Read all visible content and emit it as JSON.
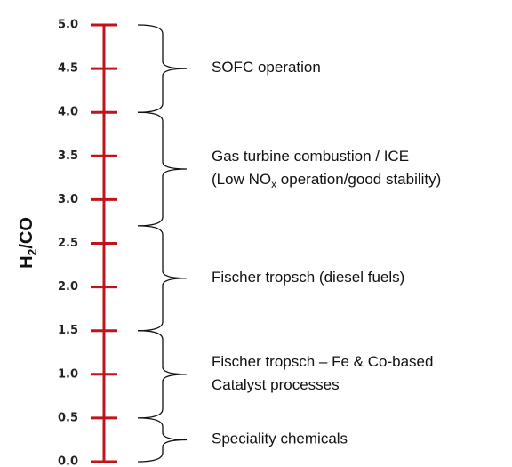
{
  "scale": {
    "axis_label": {
      "main": "H",
      "sub": "2",
      "rest": "/CO"
    },
    "min": 0,
    "max": 5,
    "ticks": [
      {
        "value": 0,
        "label": "0.0"
      },
      {
        "value": 0.5,
        "label": "0.5"
      },
      {
        "value": 1,
        "label": "1.0"
      },
      {
        "value": 1.5,
        "label": "1.5"
      },
      {
        "value": 2,
        "label": "2.0"
      },
      {
        "value": 2.5,
        "label": "2.5"
      },
      {
        "value": 3,
        "label": "3.0"
      },
      {
        "value": 3.5,
        "label": "3.5"
      },
      {
        "value": 4,
        "label": "4.0"
      },
      {
        "value": 4.5,
        "label": "4.5"
      },
      {
        "value": 5,
        "label": "5.0"
      }
    ],
    "color": "#c0141c",
    "ranges": [
      {
        "from": 4.0,
        "to": 5.0,
        "lines": [
          [
            {
              "text": "SOFC operation"
            }
          ]
        ]
      },
      {
        "from": 2.7,
        "to": 4.0,
        "lines": [
          [
            {
              "text": "Gas turbine combustion / ICE"
            }
          ],
          [
            {
              "text": "(Low NO"
            },
            {
              "text": "x",
              "sub": true
            },
            {
              "text": " operation/good stability)"
            }
          ]
        ]
      },
      {
        "from": 1.5,
        "to": 2.7,
        "lines": [
          [
            {
              "text": "Fischer tropsch (diesel fuels)"
            }
          ]
        ]
      },
      {
        "from": 0.5,
        "to": 1.5,
        "lines": [
          [
            {
              "text": "Fischer tropsch – Fe & Co-based"
            }
          ],
          [
            {
              "text": "Catalyst processes"
            }
          ]
        ]
      },
      {
        "from": 0.0,
        "to": 0.5,
        "lines": [
          [
            {
              "text": "Speciality chemicals"
            }
          ]
        ]
      }
    ]
  }
}
